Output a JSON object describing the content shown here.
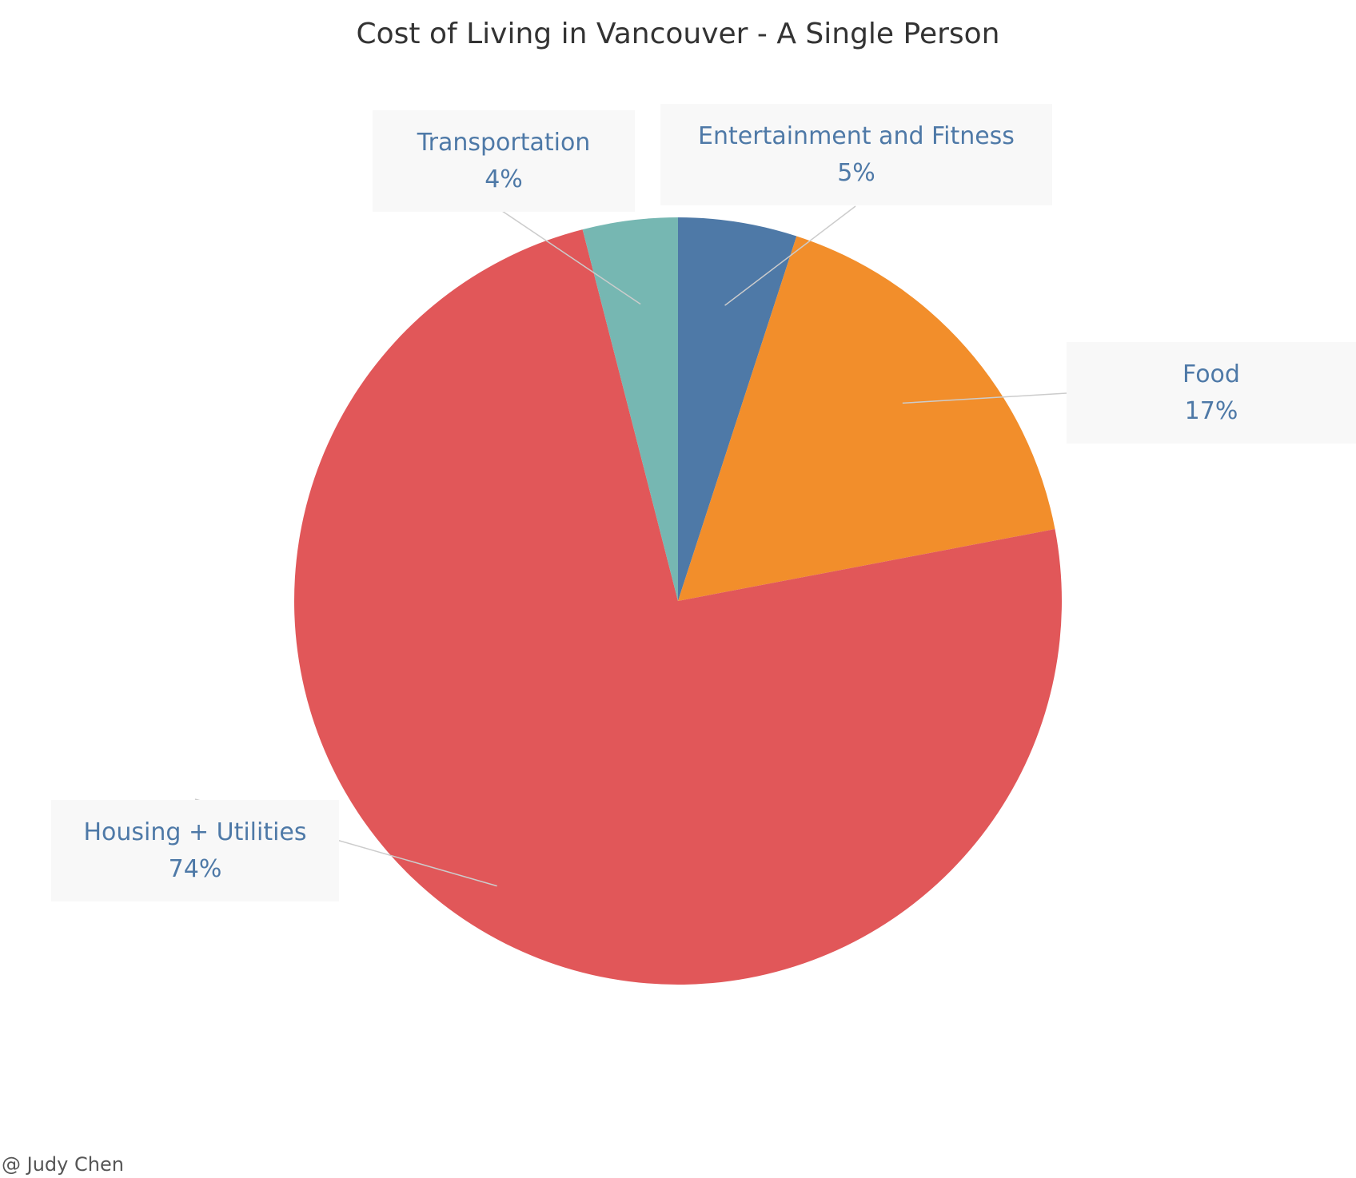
{
  "chart_data": {
    "type": "pie",
    "title": "Cost of Living in Vancouver - A Single Person",
    "start_angle_deg": 0,
    "direction": "clockwise",
    "slices": [
      {
        "label": "Entertainment and Fitness",
        "value": 5,
        "display": "5%",
        "color": "#4e79a7"
      },
      {
        "label": "Food",
        "value": 17,
        "display": "17%",
        "color": "#f28e2b"
      },
      {
        "label": "Housing + Utilities",
        "value": 74,
        "display": "74%",
        "color": "#e15759"
      },
      {
        "label": "Transportation",
        "value": 4,
        "display": "4%",
        "color": "#76b7b2"
      }
    ],
    "label_color": "#4e79a7"
  },
  "credit": "@ Judy Chen"
}
